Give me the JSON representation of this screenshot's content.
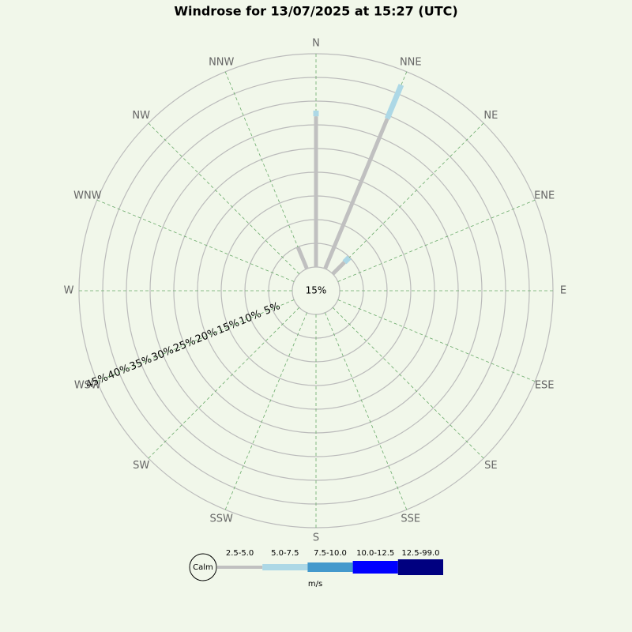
{
  "chart_data": {
    "type": "windrose",
    "title": "Windrose for 13/07/2025 at 15:27 (UTC)",
    "categories": [
      "N",
      "NNE",
      "NE",
      "ENE",
      "E",
      "ESE",
      "SE",
      "SSE",
      "S",
      "SSW",
      "SW",
      "WSW",
      "W",
      "WNW",
      "NW",
      "NNW"
    ],
    "series": [
      {
        "name": "2.5-5.0",
        "color": "#c0c0c0",
        "values": [
          31.8,
          34.3,
          3.5,
          0,
          0,
          0,
          0,
          0,
          0,
          0,
          0,
          0,
          0,
          0,
          0,
          4.9
        ]
      },
      {
        "name": "5.0-7.5",
        "color": "#add8e6",
        "values": [
          1.2,
          7.7,
          1.4,
          0,
          0,
          0,
          0,
          0,
          0,
          0,
          0,
          0,
          0,
          0,
          0,
          0
        ]
      },
      {
        "name": "7.5-10.0",
        "color": "#4499cc",
        "values": [
          0,
          0,
          0,
          0,
          0,
          0,
          0,
          0,
          0,
          0,
          0,
          0,
          0,
          0,
          0,
          0
        ]
      },
      {
        "name": "10.0-12.5",
        "color": "#0000ff",
        "values": [
          0,
          0,
          0,
          0,
          0,
          0,
          0,
          0,
          0,
          0,
          0,
          0,
          0,
          0,
          0,
          0
        ]
      },
      {
        "name": "12.5-99.0",
        "color": "#000080",
        "values": [
          0,
          0,
          0,
          0,
          0,
          0,
          0,
          0,
          0,
          0,
          0,
          0,
          0,
          0,
          0,
          0
        ]
      }
    ],
    "calm": 15,
    "calm_label": "15%",
    "calm_legend": "Calm",
    "unit": "m/s",
    "rlim": [
      0,
      45
    ],
    "rticks": [
      {
        "value": 5,
        "label": "5%"
      },
      {
        "value": 10,
        "label": "10%"
      },
      {
        "value": 15,
        "label": "15%"
      },
      {
        "value": 20,
        "label": "20%"
      },
      {
        "value": 25,
        "label": "25%"
      },
      {
        "value": 30,
        "label": "30%"
      },
      {
        "value": 35,
        "label": "35%"
      },
      {
        "value": 40,
        "label": "40%"
      },
      {
        "value": 45,
        "label": "45%"
      }
    ],
    "grid": true
  }
}
